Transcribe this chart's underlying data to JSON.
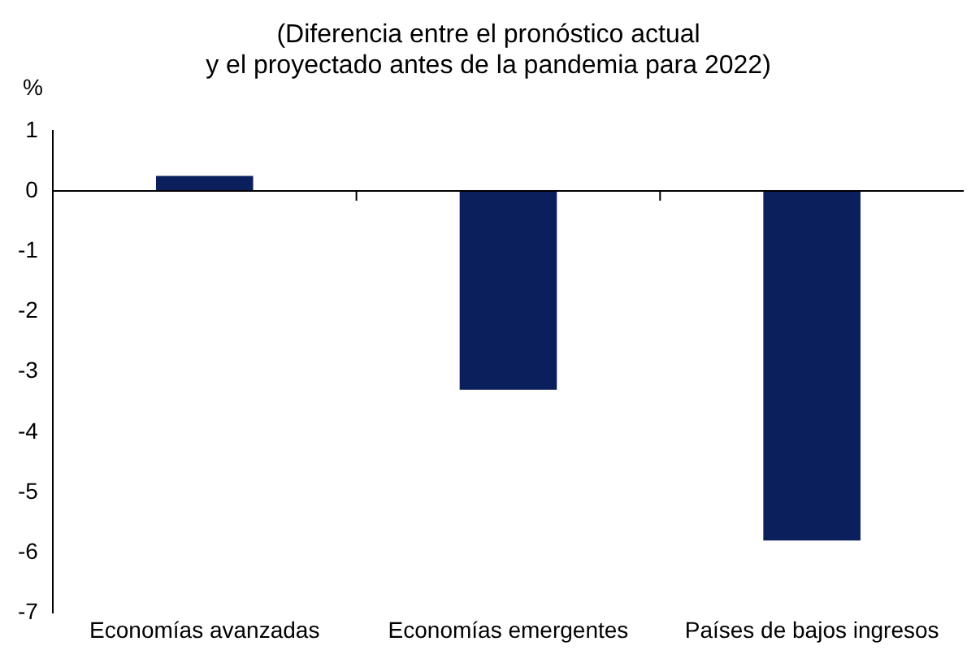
{
  "chart_data": {
    "type": "bar",
    "title": "(Diferencia entre el pronóstico actual\ny el proyectado antes de la pandemia para 2022)",
    "ylabel": "%",
    "categories": [
      "Economías avanzadas",
      "Economías emergentes",
      "Países de bajos ingresos"
    ],
    "values": [
      0.25,
      -3.3,
      -5.8
    ],
    "color": "#0b1f5c",
    "ylim": [
      -7,
      1
    ],
    "yticks": [
      -7,
      -6,
      -5,
      -4,
      -3,
      -2,
      -1,
      0,
      1
    ],
    "grid": false,
    "legend": false,
    "ref_lines": [
      {
        "axis": "y",
        "value": 0,
        "color": "#000000"
      }
    ]
  }
}
